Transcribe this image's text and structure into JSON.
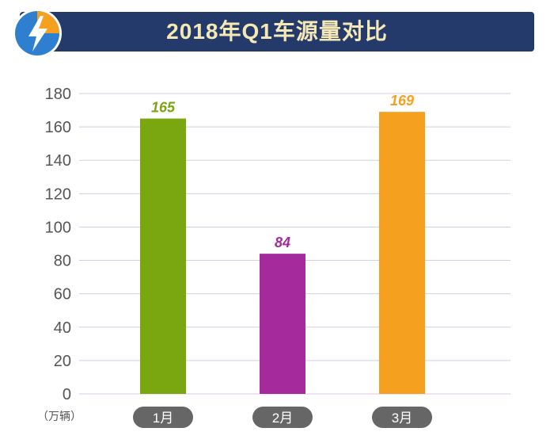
{
  "header": {
    "title": "2018年Q1车源量对比",
    "logo_icon": "lightning-bolt-icon"
  },
  "chart_data": {
    "type": "bar",
    "title": "2018年Q1车源量对比",
    "categories": [
      "1月",
      "2月",
      "3月"
    ],
    "values": [
      165,
      84,
      169
    ],
    "value_labels": [
      "165",
      "84",
      "169"
    ],
    "colors": [
      "#7aa60f",
      "#a52a9c",
      "#f6a020"
    ],
    "ylabel": "（万辆）",
    "ylim": [
      0,
      180
    ],
    "yticks": [
      "0",
      "20",
      "40",
      "60",
      "80",
      "100",
      "120",
      "140",
      "160",
      "180"
    ],
    "grid": true,
    "legend": "none"
  },
  "colors": {
    "title_bg": "#243a6b",
    "title_text": "#f4e9b4",
    "grid": "#d8c9e6",
    "category_pill": "#666666"
  }
}
